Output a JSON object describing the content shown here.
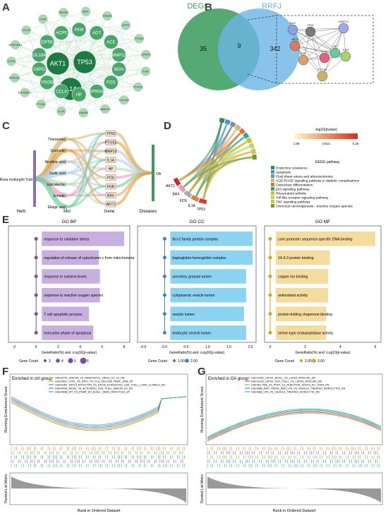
{
  "panel_letters": {
    "a": "A",
    "b": "B",
    "c": "C",
    "d": "D",
    "e": "E",
    "f": "F",
    "g": "G"
  },
  "network": {
    "core": [
      "AKT1",
      "TP53",
      "IL1A"
    ],
    "mid": [
      "PKM",
      "AGT",
      "ACE",
      "MMP12",
      "BGN",
      "FOS",
      "HSP90AB1",
      "HP",
      "CCL4",
      "TYROBP",
      "G6PD",
      "COL18A1",
      "EIF5B",
      "ACP5"
    ],
    "outer": [
      "BAX",
      "RPAP3",
      "DPP3",
      "PFDN2",
      "UHRF1",
      "FGR",
      "PTGDS",
      "COL4A2",
      "MMKGS",
      "HMMR",
      "LCAT",
      "PTGS1",
      "EIF4EBP1",
      "MAN2B1",
      "CTSH",
      "SERPINB1",
      "CCL22",
      "ITIH4",
      "SNORD"
    ]
  },
  "venn": {
    "left_label": "DEGs",
    "right_label": "RRFJ",
    "left_only": "35",
    "overlap": "9",
    "right_only": "342"
  },
  "ppi_nodes": [
    "BAX",
    "AKT1",
    "TP53",
    "MMP12",
    "FOS",
    "IL1A",
    "HP",
    "FGR",
    "PTGS1"
  ],
  "sankey": {
    "herb": "Rosa roxburghii Tratt",
    "mols": [
      "Triterpenes",
      "Quercetin",
      "Nicotinic acid",
      "Gallic acid",
      "Epicatechin",
      "Emodin",
      "Ellagic acid"
    ],
    "genes": [
      "TP53",
      "PTGS1",
      "MMP12",
      "IL1A",
      "HP",
      "FOS",
      "FGR",
      "BAX",
      "AKT1"
    ],
    "disease": "OA",
    "axis": [
      "Herb",
      "Mol",
      "Gene",
      "Diseases"
    ]
  },
  "chord": {
    "genes": [
      "TP53",
      "IL1A",
      "FOS",
      "BAX",
      "AKT1"
    ],
    "legend_title": "-log10(pvalue)",
    "scale_ticks": [
      "1.89",
      "3.813",
      "6.28"
    ],
    "kegg_title": "KEGG pathway",
    "pathways": [
      {
        "name": "Endocrine resistance",
        "color": "#2e8b57"
      },
      {
        "name": "Apoptosis",
        "color": "#3a9bd6"
      },
      {
        "name": "Fluid shear stress and atherosclerosis",
        "color": "#8a8a8a"
      },
      {
        "name": "AGE-RAGE signaling pathway in diabetic complications",
        "color": "#c9b67a"
      },
      {
        "name": "Osteoclast differentiation",
        "color": "#e0722b"
      },
      {
        "name": "p53 signaling pathway",
        "color": "#2aa39a"
      },
      {
        "name": "Rheumatoid arthritis",
        "color": "#c5c52a"
      },
      {
        "name": "Toll-like receptor signaling pathway",
        "color": "#b7d67a"
      },
      {
        "name": "TNF signaling pathway",
        "color": "#e3b84a"
      },
      {
        "name": "Chemical carcinogenesis - reactive oxygen species",
        "color": "#6a9f2e"
      }
    ]
  },
  "go": {
    "bp": {
      "title": "GO BP",
      "terms": [
        "response to oxidative stress",
        "regulation of release of cytochrome c from mitochondria",
        "response to nutrient levels",
        "response to reactive oxygen species",
        "T cell apoptotic process",
        "execution phase of apoptosis"
      ],
      "ticks": [
        "-2",
        "0",
        "2",
        "4",
        "6",
        "8"
      ],
      "legend": [
        "3",
        "4",
        "5",
        "6"
      ],
      "xlabel": "GeneRatio(%) and -Log10(p-value)",
      "legend_title": "Gene Count"
    },
    "cc": {
      "title": "GO CC",
      "terms": [
        "Bcl-2 family protein complex",
        "haptoglobin-hemoglobin complex",
        "secretory granule lumen",
        "cytoplasmic vesicle lumen",
        "vesicle lumen",
        "endocytic vesicle lumen"
      ],
      "ticks": [
        "-0.5",
        "0.0",
        "0.5",
        "1.0",
        "1.5",
        "2.0"
      ],
      "legend": [
        "1.00",
        "2.00"
      ],
      "xlabel": "GeneRatio(%) and -Log10(p-value)",
      "legend_title": "Gene Count"
    },
    "mf": {
      "title": "GO MF",
      "terms": [
        "core promoter sequence-specific DNA binding",
        "14-3-3 protein binding",
        "copper ion binding",
        "antioxidant activity",
        "protein-folding chaperone binding",
        "serine-type endopeptidase activity"
      ],
      "ticks": [
        "0",
        "2",
        "4",
        "6"
      ],
      "legend": [
        "2.00",
        "3.00"
      ],
      "xlabel": "GeneRatio(%) and -Log10(p-value)",
      "legend_title": "Gene Count"
    }
  },
  "gsea": {
    "f": {
      "title": "Enriched in ctrl group",
      "sets": [
        "GSE16791_UNSTIM_VS_NEWCASTLE_VIRUS_DC_1H_DN",
        "GSE29617_CTRL_VS_DAY3_TIV_FLU_VACCINE_PBMC_2008_UP",
        "GSE41867_DAY15_EFFECTOR_VS_DAY30_EXHAUSTED_CD8_TCELL_LCMV_CLONE13_DN",
        "GSE40493_NAIVE_VS_ACTIVATED_CD8_TCELL_MIR155_KO_DN",
        "GSE40666_WT_VS_IFNAR_KO_BCELL_SKMV_INFECTION_UP"
      ],
      "colors": [
        "#e4893a",
        "#8ab82e",
        "#3b8fd6",
        "#9b5fc0",
        "#3cb9a8"
      ]
    },
    "g": {
      "title": "Enriched in OA group",
      "sets": [
        "GSE10325_LUPUS_BCELL_VS_LUPUS_MYELOID_DN",
        "GSE10325_LUPUS_CD4_TCELL_VS_LUPUS_MYELOID_DN",
        "GSE369_PRE_VS_POST_IL6_INJECTION_SOCS3_KO_LIVER_DN",
        "GSE9988_ANTI_TREM1_AND_LPS_VS_VEHICLE_TREATED_MONOCYTES_DN",
        "GSE9988_LPS_VS_VEHICLE_TREATED_MONOCYTE_DN"
      ],
      "colors": [
        "#e4893a",
        "#9b5fc0",
        "#8ab82e",
        "#3b8fd6",
        "#3cb9a8"
      ]
    },
    "ylabel_top": "Running Enrichment Score",
    "ylabel_bottom": "Ranked List Metric",
    "xlabel": "Rank in Ordered Dataset"
  }
}
